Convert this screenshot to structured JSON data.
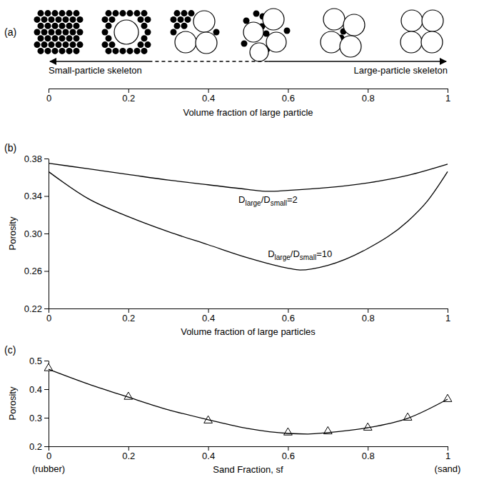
{
  "chart_data": [
    {
      "type": "diagram",
      "panel_label": "(a)",
      "xlabel": "Volume fraction of large particle",
      "xlim": [
        0,
        1
      ],
      "xticks": [
        0,
        0.2,
        0.4,
        0.6,
        0.8,
        1
      ],
      "annotations": [
        "Small-particle skeleton",
        "Large-particle skeleton"
      ]
    },
    {
      "type": "line",
      "panel_label": "(b)",
      "xlabel": "Volume fraction of large particles",
      "ylabel": "Porosity",
      "xlim": [
        0,
        1
      ],
      "ylim": [
        0.22,
        0.38
      ],
      "xticks": [
        0,
        0.2,
        0.4,
        0.6,
        0.8,
        1
      ],
      "yticks": [
        0.22,
        0.26,
        {
          "value": 0.3,
          "label": "0.30"
        },
        0.34,
        0.38
      ],
      "series": [
        {
          "name": "Dlarge/Dsmall=2",
          "color": "#000000",
          "x": [
            0,
            0.1,
            0.2,
            0.3,
            0.4,
            0.5,
            0.55,
            0.6,
            0.7,
            0.8,
            0.9,
            1
          ],
          "values": [
            0.375,
            0.369,
            0.363,
            0.357,
            0.352,
            0.347,
            0.345,
            0.346,
            0.349,
            0.354,
            0.362,
            0.374
          ]
        },
        {
          "name": "Dlarge/Dsmall=10",
          "color": "#000000",
          "x": [
            0,
            0.1,
            0.2,
            0.3,
            0.4,
            0.5,
            0.6,
            0.63,
            0.7,
            0.8,
            0.9,
            0.95,
            1
          ],
          "values": [
            0.366,
            0.337,
            0.318,
            0.302,
            0.288,
            0.274,
            0.263,
            0.261,
            0.266,
            0.284,
            0.313,
            0.335,
            0.366
          ]
        }
      ]
    },
    {
      "type": "scatter",
      "panel_label": "(c)",
      "xlabel": "Sand Fraction, sf",
      "ylabel": "Porosity",
      "xlim": [
        0,
        1
      ],
      "ylim": [
        0.2,
        0.5
      ],
      "xticks": [
        0,
        0.2,
        0.4,
        0.6,
        0.8,
        1
      ],
      "yticks": [
        0.2,
        0.3,
        0.4,
        0.5
      ],
      "annotations": [
        {
          "text": "(rubber)",
          "x": 0
        },
        {
          "text": "(sand)",
          "x": 1
        }
      ],
      "series": [
        {
          "type": "scatter",
          "marker": "triangle",
          "color": "#000000",
          "x": [
            0,
            0.2,
            0.4,
            0.6,
            0.7,
            0.8,
            0.9,
            1
          ],
          "values": [
            0.473,
            0.373,
            0.29,
            0.248,
            0.252,
            0.265,
            0.3,
            0.365
          ]
        },
        {
          "type": "line",
          "line_style": "solid",
          "color": "#000000",
          "x": [
            0,
            0.1,
            0.2,
            0.3,
            0.4,
            0.5,
            0.6,
            0.65,
            0.7,
            0.8,
            0.9,
            1
          ],
          "values": [
            0.47,
            0.418,
            0.372,
            0.328,
            0.293,
            0.262,
            0.245,
            0.243,
            0.248,
            0.265,
            0.298,
            0.365
          ]
        }
      ]
    }
  ]
}
